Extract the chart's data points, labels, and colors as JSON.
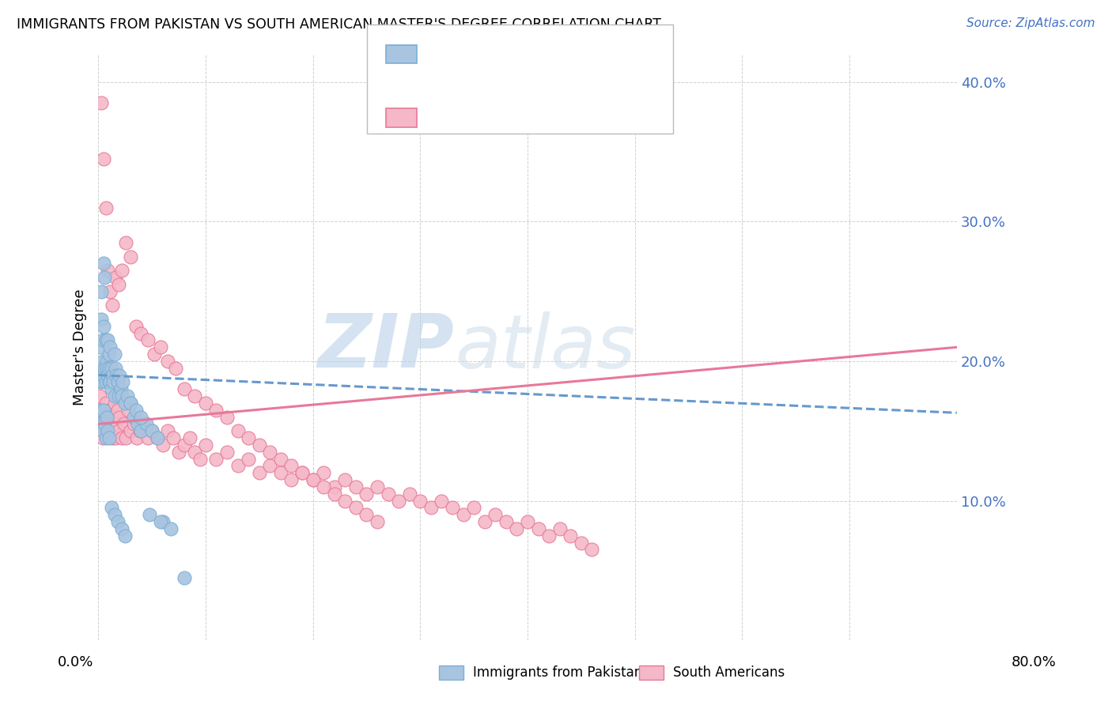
{
  "title": "IMMIGRANTS FROM PAKISTAN VS SOUTH AMERICAN MASTER'S DEGREE CORRELATION CHART",
  "source": "Source: ZipAtlas.com",
  "ylabel": "Master's Degree",
  "xmin": 0.0,
  "xmax": 0.8,
  "ymin": 0.0,
  "ymax": 0.42,
  "yticks": [
    0.0,
    0.1,
    0.2,
    0.3,
    0.4
  ],
  "ytick_labels": [
    "",
    "10.0%",
    "20.0%",
    "30.0%",
    "40.0%"
  ],
  "pakistan_color": "#a8c4e0",
  "pakistan_edge": "#7bafd4",
  "south_american_color": "#f4b8c8",
  "south_american_edge": "#e8789a",
  "line_pakistan_color": "#6699cc",
  "line_south_color": "#e8789a",
  "watermark_zip": "ZIP",
  "watermark_atlas": "atlas",
  "pakistan_x": [
    0.001,
    0.002,
    0.002,
    0.003,
    0.003,
    0.003,
    0.004,
    0.004,
    0.004,
    0.005,
    0.005,
    0.005,
    0.006,
    0.006,
    0.007,
    0.007,
    0.008,
    0.008,
    0.009,
    0.009,
    0.01,
    0.01,
    0.01,
    0.011,
    0.011,
    0.012,
    0.012,
    0.013,
    0.014,
    0.015,
    0.015,
    0.016,
    0.017,
    0.018,
    0.019,
    0.02,
    0.021,
    0.022,
    0.023,
    0.025,
    0.027,
    0.03,
    0.033,
    0.037,
    0.04,
    0.045,
    0.05,
    0.055,
    0.06,
    0.002,
    0.003,
    0.004,
    0.005,
    0.006,
    0.007,
    0.008,
    0.009,
    0.01,
    0.012,
    0.015,
    0.018,
    0.022,
    0.025,
    0.03,
    0.035,
    0.04,
    0.048,
    0.058,
    0.068,
    0.08
  ],
  "pakistan_y": [
    0.195,
    0.21,
    0.185,
    0.23,
    0.25,
    0.195,
    0.215,
    0.2,
    0.185,
    0.27,
    0.225,
    0.19,
    0.26,
    0.195,
    0.215,
    0.185,
    0.2,
    0.195,
    0.215,
    0.19,
    0.205,
    0.195,
    0.185,
    0.21,
    0.185,
    0.195,
    0.18,
    0.19,
    0.185,
    0.205,
    0.175,
    0.195,
    0.19,
    0.185,
    0.175,
    0.19,
    0.18,
    0.175,
    0.185,
    0.17,
    0.175,
    0.17,
    0.16,
    0.155,
    0.15,
    0.155,
    0.15,
    0.145,
    0.085,
    0.165,
    0.155,
    0.15,
    0.165,
    0.155,
    0.145,
    0.16,
    0.15,
    0.145,
    0.095,
    0.09,
    0.085,
    0.08,
    0.075,
    0.17,
    0.165,
    0.16,
    0.09,
    0.085,
    0.08,
    0.045
  ],
  "south_x": [
    0.001,
    0.002,
    0.003,
    0.004,
    0.005,
    0.006,
    0.007,
    0.008,
    0.009,
    0.01,
    0.011,
    0.012,
    0.013,
    0.014,
    0.015,
    0.016,
    0.017,
    0.018,
    0.019,
    0.02,
    0.022,
    0.024,
    0.026,
    0.028,
    0.03,
    0.033,
    0.036,
    0.039,
    0.042,
    0.046,
    0.05,
    0.055,
    0.06,
    0.065,
    0.07,
    0.075,
    0.08,
    0.085,
    0.09,
    0.095,
    0.1,
    0.11,
    0.12,
    0.13,
    0.14,
    0.15,
    0.16,
    0.17,
    0.18,
    0.19,
    0.2,
    0.21,
    0.22,
    0.23,
    0.24,
    0.25,
    0.26,
    0.27,
    0.28,
    0.29,
    0.3,
    0.31,
    0.32,
    0.33,
    0.34,
    0.35,
    0.36,
    0.37,
    0.38,
    0.39,
    0.4,
    0.41,
    0.42,
    0.43,
    0.44,
    0.45,
    0.46,
    0.003,
    0.005,
    0.007,
    0.009,
    0.011,
    0.013,
    0.016,
    0.019,
    0.022,
    0.026,
    0.03,
    0.035,
    0.04,
    0.046,
    0.052,
    0.058,
    0.065,
    0.072,
    0.08,
    0.09,
    0.1,
    0.11,
    0.12,
    0.13,
    0.14,
    0.15,
    0.16,
    0.17,
    0.18,
    0.19,
    0.2,
    0.21,
    0.22,
    0.23,
    0.24,
    0.25,
    0.26
  ],
  "south_y": [
    0.175,
    0.155,
    0.165,
    0.145,
    0.165,
    0.155,
    0.17,
    0.15,
    0.16,
    0.165,
    0.155,
    0.16,
    0.145,
    0.155,
    0.17,
    0.145,
    0.155,
    0.165,
    0.15,
    0.16,
    0.145,
    0.155,
    0.145,
    0.165,
    0.15,
    0.155,
    0.145,
    0.15,
    0.155,
    0.145,
    0.15,
    0.145,
    0.14,
    0.15,
    0.145,
    0.135,
    0.14,
    0.145,
    0.135,
    0.13,
    0.14,
    0.13,
    0.135,
    0.125,
    0.13,
    0.12,
    0.125,
    0.12,
    0.115,
    0.12,
    0.115,
    0.12,
    0.11,
    0.115,
    0.11,
    0.105,
    0.11,
    0.105,
    0.1,
    0.105,
    0.1,
    0.095,
    0.1,
    0.095,
    0.09,
    0.095,
    0.085,
    0.09,
    0.085,
    0.08,
    0.085,
    0.08,
    0.075,
    0.08,
    0.075,
    0.07,
    0.065,
    0.385,
    0.345,
    0.31,
    0.265,
    0.25,
    0.24,
    0.26,
    0.255,
    0.265,
    0.285,
    0.275,
    0.225,
    0.22,
    0.215,
    0.205,
    0.21,
    0.2,
    0.195,
    0.18,
    0.175,
    0.17,
    0.165,
    0.16,
    0.15,
    0.145,
    0.14,
    0.135,
    0.13,
    0.125,
    0.12,
    0.115,
    0.11,
    0.105,
    0.1,
    0.095,
    0.09,
    0.085
  ],
  "pak_line_x0": 0.0,
  "pak_line_x1": 0.8,
  "pak_line_y0": 0.19,
  "pak_line_y1": 0.163,
  "sa_line_x0": 0.0,
  "sa_line_x1": 0.8,
  "sa_line_y0": 0.155,
  "sa_line_y1": 0.21
}
